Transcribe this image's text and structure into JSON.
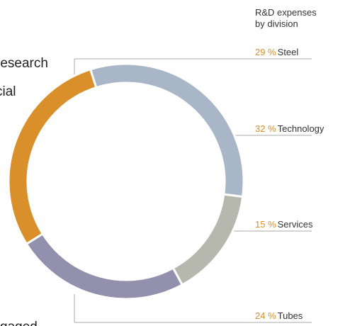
{
  "chart_data": {
    "type": "pie",
    "title": "R&D expenses by division",
    "title_lines": [
      "R&D expenses",
      "by division"
    ],
    "categories": [
      "Technology",
      "Services",
      "Tubes",
      "Steel"
    ],
    "values": [
      32,
      15,
      24,
      29
    ],
    "value_labels": [
      "32 %",
      "15 %",
      "24 %",
      "29 %"
    ],
    "colors": [
      "#a9b6c7",
      "#b6b8ad",
      "#9390ad",
      "#d98f2a"
    ],
    "label_color": "#d98f2a",
    "annotations": [
      "research",
      "cial",
      "gaged"
    ]
  }
}
